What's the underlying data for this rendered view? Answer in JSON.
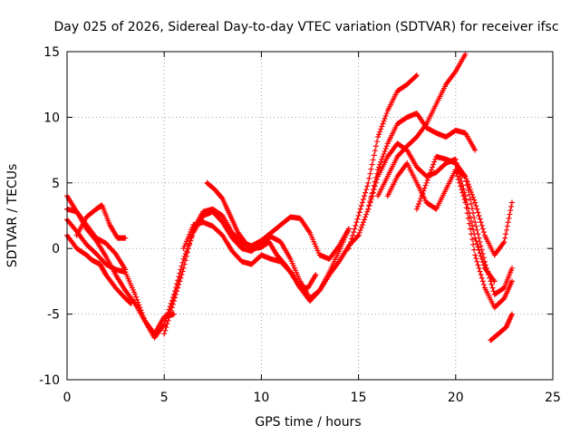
{
  "chart_data": {
    "type": "scatter",
    "title": "Day 025 of 2026, Sidereal Day-to-day VTEC variation (SDTVAR) for receiver ifsc",
    "xlabel": "GPS time / hours",
    "ylabel": "SDTVAR / TECUs",
    "xlim": [
      0,
      25
    ],
    "ylim": [
      -10,
      15
    ],
    "xticks": [
      0,
      5,
      10,
      15,
      20,
      25
    ],
    "yticks": [
      -10,
      -5,
      0,
      5,
      10,
      15
    ],
    "xtick_labels": [
      "0",
      "5",
      "10",
      "15",
      "20",
      "25"
    ],
    "ytick_labels": [
      "-10",
      "-5",
      "0",
      "5",
      "10",
      "15"
    ],
    "grid": true,
    "marker": "+",
    "color": "#ff0000",
    "series": [
      {
        "x": [
          0.0,
          0.5,
          1.0,
          1.5,
          2.0,
          2.5,
          3.0
        ],
        "y": [
          4.0,
          2.8,
          1.5,
          0.6,
          -0.6,
          -2.0,
          -3.2
        ]
      },
      {
        "x": [
          0.0,
          0.5,
          1.0,
          1.5,
          2.0,
          2.5,
          3.0,
          3.5,
          4.0,
          4.5,
          5.0,
          5.5,
          6.0,
          6.5,
          7.0,
          7.5,
          8.0,
          8.5,
          9.0,
          9.5,
          10.0,
          10.5,
          11.0,
          11.5,
          12.0,
          12.5,
          13.0,
          13.5,
          14.0,
          14.5
        ],
        "y": [
          2.2,
          1.3,
          0.3,
          -0.4,
          -1.2,
          -1.6,
          -1.8,
          -3.5,
          -5.5,
          -6.8,
          -5.8,
          -3.5,
          -0.8,
          1.2,
          2.5,
          2.8,
          2.0,
          0.8,
          0.0,
          -0.2,
          0.4,
          0.9,
          0.5,
          -0.8,
          -2.5,
          -3.8,
          -3.2,
          -1.8,
          -0.2,
          1.5
        ]
      },
      {
        "x": [
          0.0,
          0.5,
          1.0,
          1.3,
          1.7,
          2.0,
          2.5,
          3.0,
          3.3
        ],
        "y": [
          1.0,
          0.0,
          -0.5,
          -0.9,
          -1.2,
          -2.0,
          -3.0,
          -3.8,
          -4.2
        ]
      },
      {
        "x": [
          0.5,
          1.0,
          1.5,
          1.8,
          2.2,
          2.6,
          3.0
        ],
        "y": [
          1.0,
          2.4,
          3.0,
          3.3,
          1.8,
          0.8,
          0.8
        ]
      },
      {
        "x": [
          0.0,
          0.5,
          1.0,
          1.5,
          2.0,
          2.5,
          3.0
        ],
        "y": [
          3.0,
          2.8,
          1.8,
          0.8,
          0.4,
          -0.4,
          -1.6
        ]
      },
      {
        "x": [
          3.0,
          3.5,
          4.0,
          4.5,
          5.0,
          5.5
        ],
        "y": [
          -3.2,
          -4.2,
          -5.5,
          -6.5,
          -5.2,
          -5.0
        ]
      },
      {
        "x": [
          5.0,
          5.5,
          6.0,
          6.5,
          7.0,
          7.5,
          8.0,
          8.5,
          9.0,
          9.5,
          10.0,
          10.5,
          11.0,
          11.5,
          12.0,
          12.5,
          13.0,
          13.5,
          14.0,
          14.5
        ],
        "y": [
          -6.5,
          -4.0,
          -1.5,
          1.5,
          2.8,
          3.0,
          2.5,
          1.2,
          0.4,
          0.2,
          0.6,
          1.2,
          1.8,
          2.4,
          2.3,
          1.2,
          -0.5,
          -0.8,
          0.2,
          1.5
        ]
      },
      {
        "x": [
          6.0,
          6.5,
          7.0,
          7.5,
          8.0,
          8.5,
          9.0,
          9.5,
          10.0,
          10.5,
          11.0,
          11.5,
          12.0,
          12.5,
          13.0,
          13.5,
          14.0,
          14.5,
          15.0
        ],
        "y": [
          0.0,
          1.8,
          2.0,
          1.7,
          1.0,
          -0.2,
          -1.0,
          -1.2,
          -0.5,
          -0.8,
          -1.0,
          -1.8,
          -3.0,
          -4.0,
          -3.2,
          -2.0,
          -1.0,
          0.2,
          1.0
        ]
      },
      {
        "x": [
          7.2,
          7.6,
          8.0,
          8.4,
          8.8,
          9.2,
          9.6,
          10.0,
          10.4,
          10.8,
          11.2,
          11.6,
          12.0,
          12.4,
          12.8
        ],
        "y": [
          5.0,
          4.5,
          3.8,
          2.5,
          1.2,
          0.4,
          0.0,
          0.1,
          0.5,
          -0.5,
          -1.2,
          -2.0,
          -3.0,
          -3.0,
          -2.0
        ]
      },
      {
        "x": [
          14.5,
          15.0,
          15.5,
          16.0,
          16.5,
          17.0,
          17.5,
          18.0
        ],
        "y": [
          0.0,
          2.5,
          5.0,
          8.5,
          10.5,
          12.0,
          12.5,
          13.2
        ]
      },
      {
        "x": [
          15.0,
          15.5,
          16.0,
          16.5,
          17.0,
          17.5,
          18.0,
          18.5,
          19.0,
          19.5,
          20.0,
          20.5,
          21.0,
          21.5,
          22.0
        ],
        "y": [
          1.0,
          3.0,
          5.5,
          7.0,
          8.0,
          7.5,
          6.2,
          5.5,
          5.8,
          6.5,
          6.8,
          4.0,
          0.8,
          -1.5,
          -2.5
        ]
      },
      {
        "x": [
          15.5,
          16.0,
          16.5,
          17.0,
          17.5,
          18.0,
          18.5,
          19.0,
          19.5,
          20.0,
          20.5,
          21.0
        ],
        "y": [
          3.0,
          6.0,
          8.0,
          9.5,
          10.0,
          10.3,
          9.2,
          8.8,
          8.5,
          9.0,
          8.8,
          7.5
        ]
      },
      {
        "x": [
          16.0,
          16.5,
          17.0,
          17.5,
          18.0,
          18.5,
          19.0,
          19.5,
          20.0,
          20.5
        ],
        "y": [
          4.0,
          5.5,
          7.0,
          7.8,
          8.5,
          9.5,
          11.0,
          12.5,
          13.5,
          14.8
        ]
      },
      {
        "x": [
          16.5,
          17.0,
          17.5,
          18.0,
          18.5,
          19.0,
          19.5,
          20.0,
          20.5,
          21.0,
          21.5,
          22.0,
          22.5,
          22.9
        ],
        "y": [
          4.0,
          5.5,
          6.5,
          5.0,
          3.5,
          3.0,
          4.5,
          6.0,
          5.5,
          2.0,
          -1.0,
          -3.5,
          -3.0,
          -1.5
        ]
      },
      {
        "x": [
          18.0,
          18.5,
          19.0,
          19.5,
          20.0,
          20.5,
          21.0,
          21.5,
          22.0,
          22.5,
          22.9
        ],
        "y": [
          3.0,
          5.0,
          7.0,
          6.8,
          6.5,
          5.5,
          3.5,
          1.0,
          -0.5,
          0.5,
          3.5
        ]
      },
      {
        "x": [
          20.0,
          20.5,
          21.0,
          21.5,
          22.0,
          22.5,
          22.9
        ],
        "y": [
          6.0,
          3.5,
          -0.5,
          -3.0,
          -4.5,
          -3.8,
          -2.5
        ]
      },
      {
        "x": [
          21.8,
          22.2,
          22.6,
          22.9
        ],
        "y": [
          -7.0,
          -6.5,
          -6.0,
          -5.0
        ]
      }
    ]
  }
}
